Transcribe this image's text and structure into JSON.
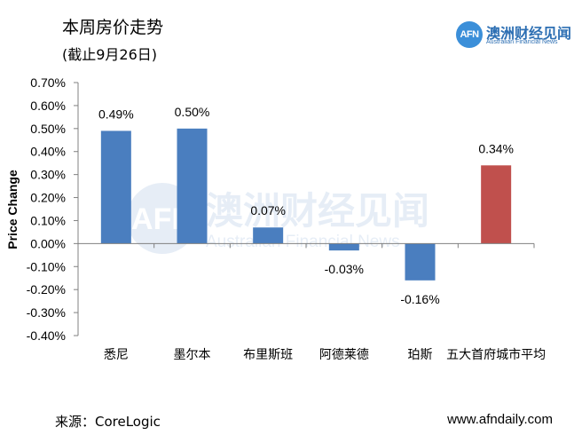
{
  "header": {
    "title": "本周房价走势",
    "subtitle": "(截止9月26日)"
  },
  "logo": {
    "mark": "AFN",
    "name_cn": "澳洲财经见闻",
    "name_en": "Australian Financial News"
  },
  "watermark": {
    "mark": "AFN",
    "name_cn": "澳洲财经见闻",
    "name_en": "Australian Financial News"
  },
  "footer": {
    "source": "来源：CoreLogic",
    "url": "www.afndaily.com"
  },
  "colors": {
    "bar_default": "#4a7ebf",
    "bar_highlight": "#c0504d",
    "axis": "#808080",
    "watermark": "#b8cde6"
  },
  "chart_data": {
    "type": "bar",
    "categories": [
      "悉尼",
      "墨尔本",
      "布里斯班",
      "阿德莱德",
      "珀斯",
      "五大首府城市平均"
    ],
    "values": [
      0.49,
      0.5,
      0.07,
      -0.03,
      -0.16,
      0.34
    ],
    "data_labels": [
      "0.49%",
      "0.50%",
      "0.07%",
      "-0.03%",
      "-0.16%",
      "0.34%"
    ],
    "highlight_index": 5,
    "ylabel": "Price Change",
    "ylim": [
      -0.4,
      0.7
    ],
    "ytick_step": 0.1,
    "ytick_labels": [
      "0.70%",
      "0.60%",
      "0.50%",
      "0.40%",
      "0.30%",
      "0.20%",
      "0.10%",
      "0.00%",
      "-0.10%",
      "-0.20%",
      "-0.30%",
      "-0.40%"
    ],
    "grid": false,
    "legend": "none"
  }
}
